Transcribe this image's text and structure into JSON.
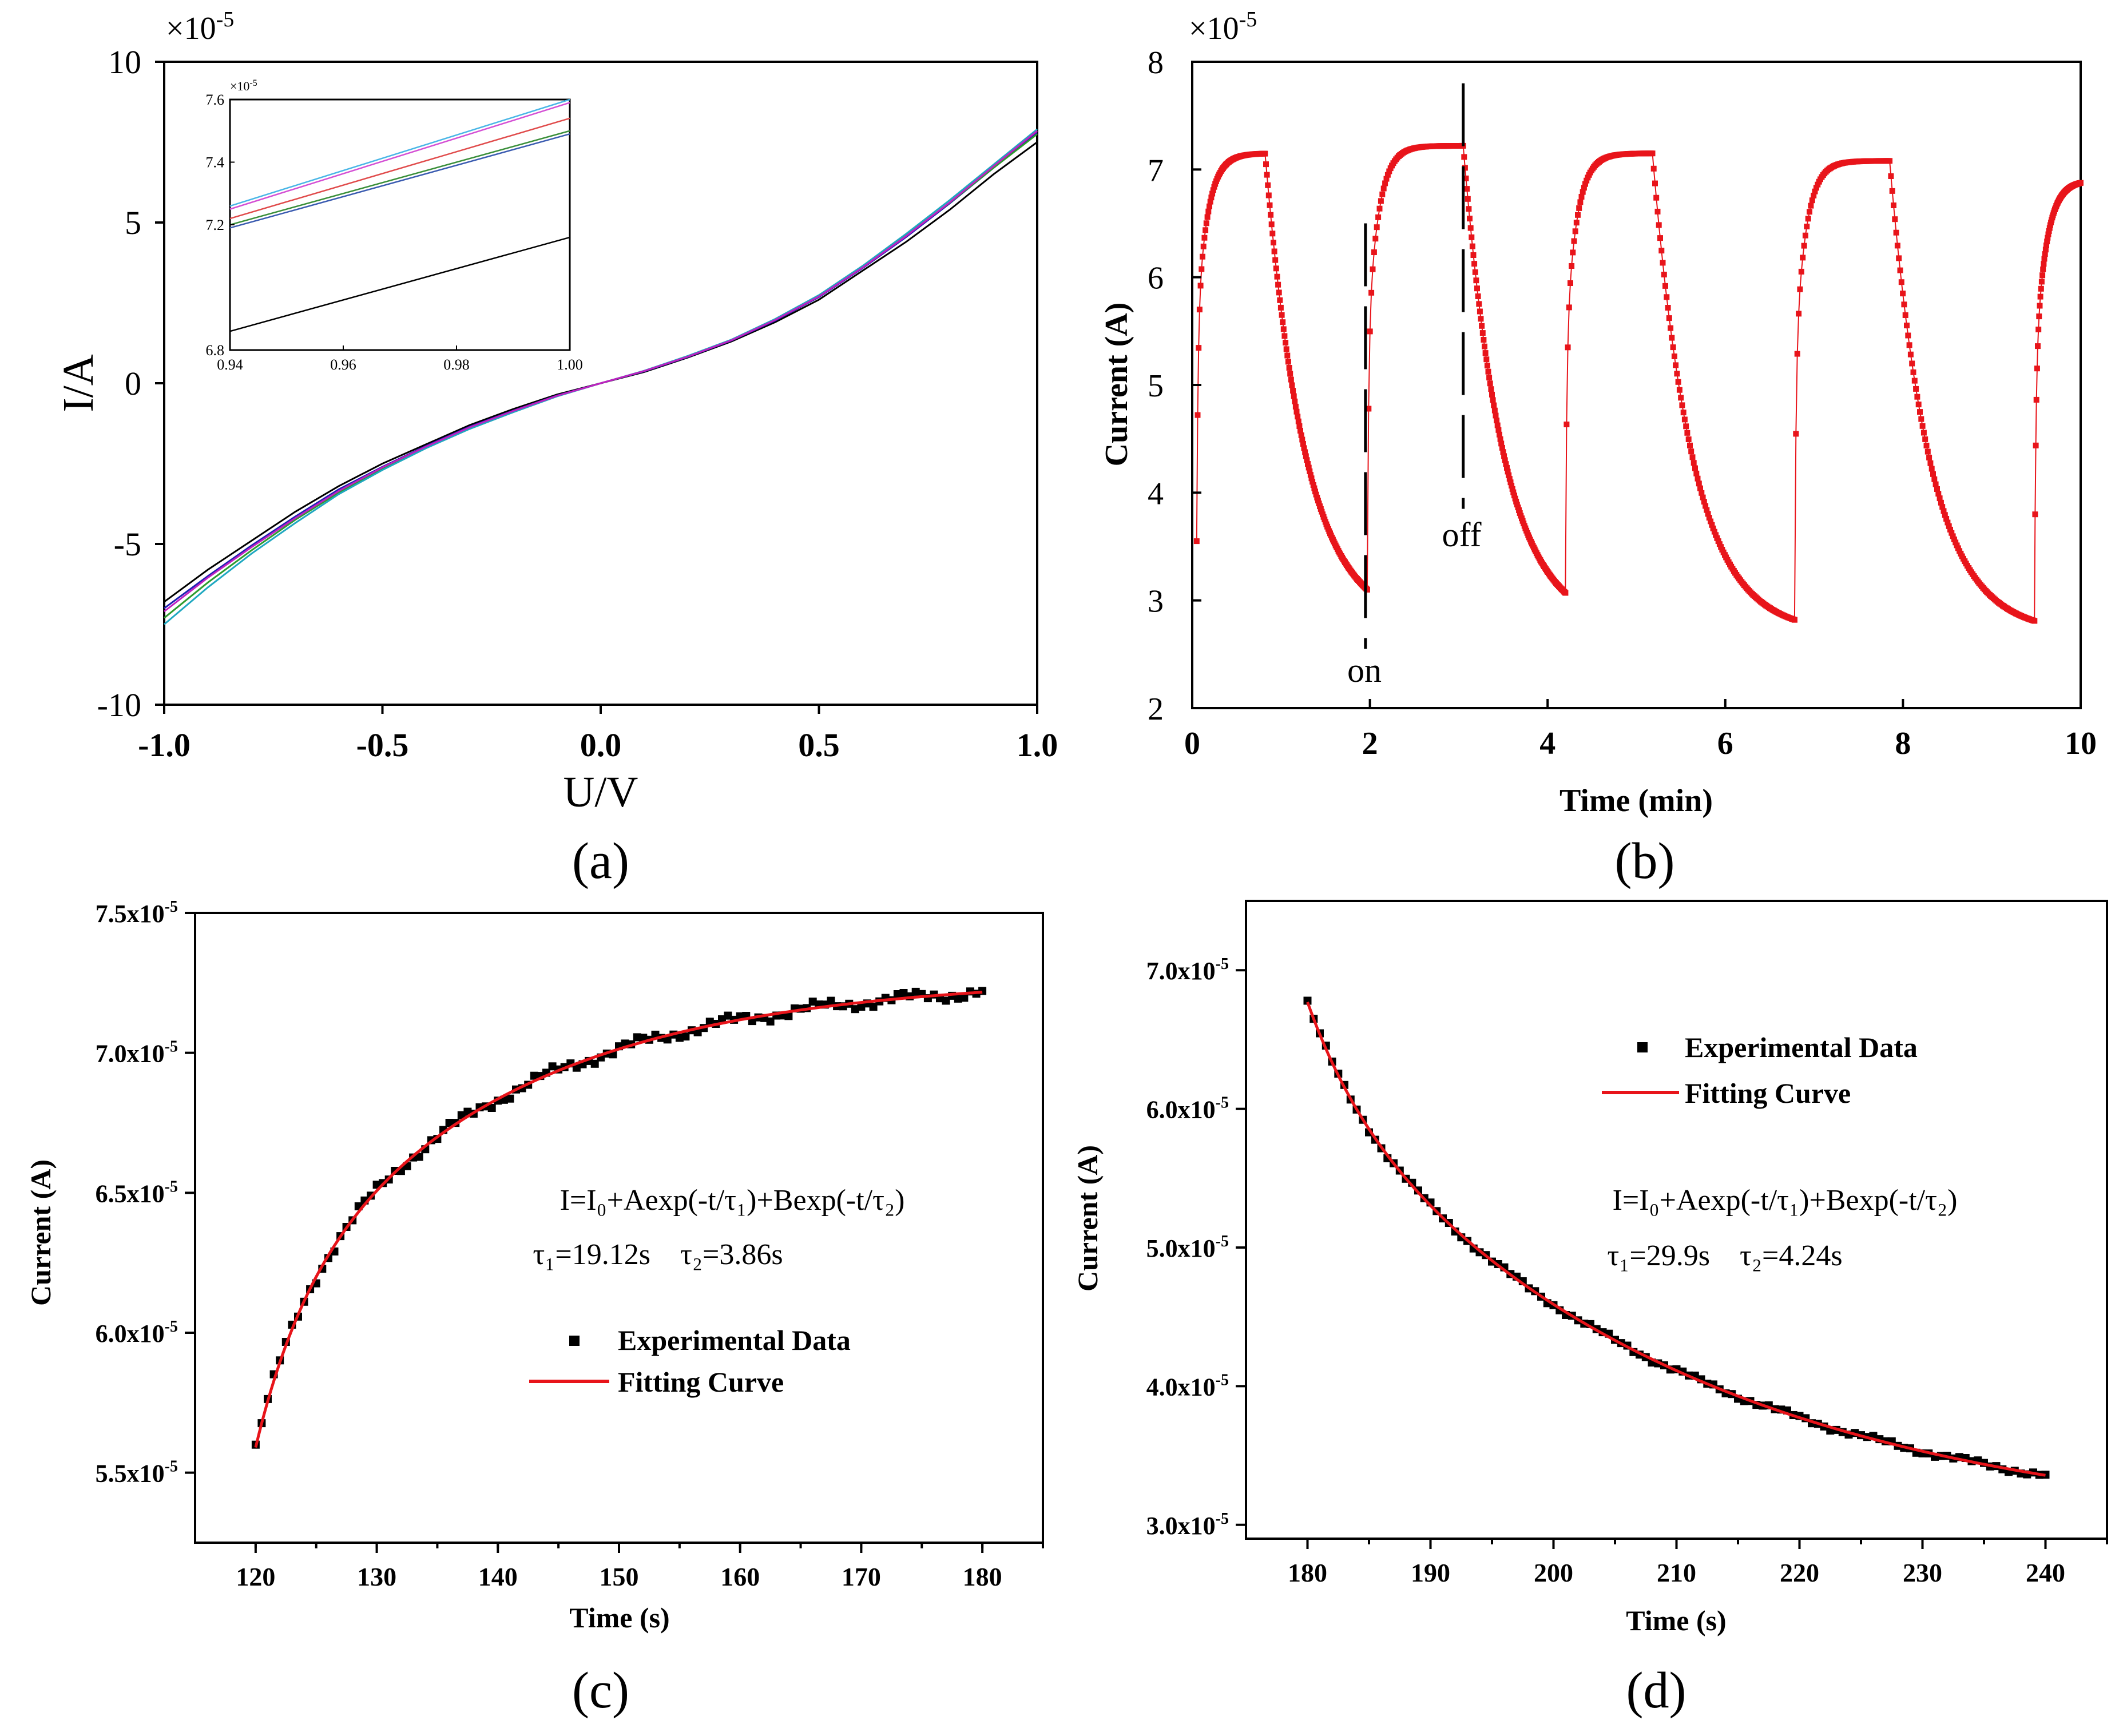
{
  "chart_data": [
    {
      "id": "a",
      "type": "line",
      "panel_label": "(a)",
      "xlabel": "U/V",
      "ylabel": "I/A",
      "y_multiplier": "×10",
      "y_multiplier_exp": "-5",
      "xlim": [
        -1.0,
        1.0
      ],
      "ylim": [
        -10,
        10
      ],
      "xticks": [
        -1.0,
        -0.5,
        0.0,
        0.5,
        1.0
      ],
      "xtick_labels": [
        "-1.0",
        "-0.5",
        "0.0",
        "0.5",
        "1.0"
      ],
      "yticks": [
        10,
        5,
        0,
        -5,
        -10
      ],
      "ytick_labels": [
        "10",
        "5",
        "0",
        "-5",
        "-10"
      ],
      "series": [
        {
          "name": "black",
          "color": "#000000",
          "x": [
            -1.0,
            -0.9,
            -0.8,
            -0.7,
            -0.6,
            -0.5,
            -0.4,
            -0.3,
            -0.2,
            -0.1,
            0.0,
            0.1,
            0.2,
            0.3,
            0.4,
            0.5,
            0.6,
            0.7,
            0.8,
            0.9,
            1.0
          ],
          "y": [
            -6.8,
            -5.8,
            -4.9,
            -4.0,
            -3.2,
            -2.5,
            -1.9,
            -1.3,
            -0.8,
            -0.35,
            0.0,
            0.35,
            0.8,
            1.3,
            1.9,
            2.6,
            3.5,
            4.4,
            5.4,
            6.5,
            7.5
          ]
        },
        {
          "name": "blue",
          "color": "#1f1fb4",
          "x": [
            -1.0,
            -0.9,
            -0.8,
            -0.7,
            -0.6,
            -0.5,
            -0.4,
            -0.3,
            -0.2,
            -0.1,
            0.0,
            0.1,
            0.2,
            0.3,
            0.4,
            0.5,
            0.6,
            0.7,
            0.8,
            0.9,
            1.0
          ],
          "y": [
            -7.0,
            -6.0,
            -5.05,
            -4.15,
            -3.3,
            -2.6,
            -1.95,
            -1.35,
            -0.85,
            -0.38,
            0.0,
            0.37,
            0.82,
            1.33,
            1.95,
            2.68,
            3.58,
            4.55,
            5.6,
            6.7,
            7.8
          ]
        },
        {
          "name": "green",
          "color": "#2e9b2e",
          "x": [
            -1.0,
            -0.9,
            -0.8,
            -0.7,
            -0.6,
            -0.5,
            -0.4,
            -0.3,
            -0.2,
            -0.1,
            0.0,
            0.1,
            0.2,
            0.3,
            0.4,
            0.5,
            0.6,
            0.7,
            0.8,
            0.9,
            1.0
          ],
          "y": [
            -7.3,
            -6.2,
            -5.2,
            -4.25,
            -3.4,
            -2.65,
            -2.0,
            -1.4,
            -0.88,
            -0.4,
            0.0,
            0.38,
            0.84,
            1.35,
            1.98,
            2.72,
            3.62,
            4.6,
            5.62,
            6.7,
            7.75
          ]
        },
        {
          "name": "cyan",
          "color": "#1fa8c0",
          "x": [
            -1.0,
            -0.9,
            -0.8,
            -0.7,
            -0.6,
            -0.5,
            -0.4,
            -0.3,
            -0.2,
            -0.1,
            0.0,
            0.1,
            0.2,
            0.3,
            0.4,
            0.5,
            0.6,
            0.7,
            0.8,
            0.9,
            1.0
          ],
          "y": [
            -7.5,
            -6.35,
            -5.3,
            -4.35,
            -3.45,
            -2.7,
            -2.02,
            -1.42,
            -0.9,
            -0.41,
            0.0,
            0.39,
            0.85,
            1.36,
            2.0,
            2.74,
            3.65,
            4.65,
            5.7,
            6.8,
            7.9
          ]
        },
        {
          "name": "magenta",
          "color": "#c020c0",
          "x": [
            -1.0,
            -0.9,
            -0.8,
            -0.7,
            -0.6,
            -0.5,
            -0.4,
            -0.3,
            -0.2,
            -0.1,
            0.0,
            0.1,
            0.2,
            0.3,
            0.4,
            0.5,
            0.6,
            0.7,
            0.8,
            0.9,
            1.0
          ],
          "y": [
            -7.1,
            -6.05,
            -5.1,
            -4.2,
            -3.35,
            -2.62,
            -1.97,
            -1.37,
            -0.86,
            -0.39,
            0.0,
            0.38,
            0.83,
            1.34,
            1.97,
            2.7,
            3.6,
            4.58,
            5.63,
            6.75,
            7.85
          ]
        }
      ],
      "inset": {
        "xlim": [
          0.94,
          1.0
        ],
        "ylim": [
          6.8,
          7.6
        ],
        "xticks": [
          0.94,
          0.96,
          0.98,
          1.0
        ],
        "xtick_labels": [
          "0.94",
          "0.96",
          "0.98",
          "1.00"
        ],
        "yticks": [
          7.6,
          7.4,
          7.2,
          6.8
        ],
        "ytick_labels": [
          "7.6",
          "7.4",
          "7.2",
          "6.8"
        ],
        "y_multiplier": "×10",
        "y_multiplier_exp": "-5",
        "lines": [
          {
            "color": "#49b6e6",
            "y0": 7.26,
            "y1": 7.6
          },
          {
            "color": "#d44fd4",
            "y0": 7.25,
            "y1": 7.59
          },
          {
            "color": "#e04b4b",
            "y0": 7.22,
            "y1": 7.54
          },
          {
            "color": "#3a8f3a",
            "y0": 7.2,
            "y1": 7.5
          },
          {
            "color": "#3a5bb0",
            "y0": 7.19,
            "y1": 7.49
          },
          {
            "color": "#000000",
            "y0": 6.86,
            "y1": 7.16
          }
        ]
      }
    },
    {
      "id": "b",
      "type": "scatter",
      "panel_label": "(b)",
      "xlabel": "Time (min)",
      "ylabel": "Current (A)",
      "y_multiplier": "×10",
      "y_multiplier_exp": "-5",
      "xlim": [
        0,
        10
      ],
      "ylim": [
        2,
        8
      ],
      "xticks": [
        0,
        2,
        4,
        6,
        8,
        10
      ],
      "xtick_labels": [
        "0",
        "2",
        "4",
        "6",
        "8",
        "10"
      ],
      "yticks": [
        8,
        7,
        6,
        5,
        4,
        3,
        2
      ],
      "ytick_labels": [
        "8",
        "7",
        "6",
        "5",
        "4",
        "3",
        "2"
      ],
      "color": "#e8141a",
      "annotations": {
        "on": "on",
        "off": "off"
      },
      "cycles": [
        {
          "t_on": 0.05,
          "t_off": 0.82,
          "t_end": 1.97,
          "low": 3.55,
          "high": 7.15,
          "floor": 3.1
        },
        {
          "t_on": 1.97,
          "t_off": 3.05,
          "t_end": 4.2,
          "low": 3.1,
          "high": 7.22,
          "floor": 3.07
        },
        {
          "t_on": 4.2,
          "t_off": 5.18,
          "t_end": 6.78,
          "low": 3.07,
          "high": 7.15,
          "floor": 2.82
        },
        {
          "t_on": 6.78,
          "t_off": 7.85,
          "t_end": 9.48,
          "low": 2.82,
          "high": 7.08,
          "floor": 2.81
        },
        {
          "t_on": 9.48,
          "t_off": 10.0,
          "t_end": 10.0,
          "low": 2.81,
          "high": 6.9,
          "floor": 6.9
        }
      ]
    },
    {
      "id": "c",
      "type": "scatter",
      "panel_label": "(c)",
      "xlabel": "Time (s)",
      "ylabel": "Current (A)",
      "xlim": [
        115,
        185
      ],
      "ylim": [
        5.25,
        7.5
      ],
      "xticks": [
        120,
        130,
        140,
        150,
        160,
        170,
        180
      ],
      "xtick_labels": [
        "120",
        "130",
        "140",
        "150",
        "160",
        "170",
        "180"
      ],
      "yticks": [
        7.5,
        7.0,
        6.5,
        6.0,
        5.5
      ],
      "ytick_labels": [
        "7.5x10",
        "7.0x10",
        "6.5x10",
        "6.0x10",
        "5.5x10"
      ],
      "ytick_exp": "-5",
      "equation": "I=I₀+Aexp(-t/τ₁)+Bexp(-t/τ₂)",
      "tau_text": "τ₁=19.12s    τ₂=3.86s",
      "legend": [
        "Experimental Data",
        "Fitting Curve"
      ],
      "fit": {
        "I0": 7.27,
        "A": 1.23,
        "tau1": 19.12,
        "B": 0.45,
        "tau2": 3.86,
        "t0": 120,
        "tmax": 180
      },
      "data_color": "#000000",
      "fit_color": "#e8141a"
    },
    {
      "id": "d",
      "type": "scatter",
      "panel_label": "(d)",
      "xlabel": "Time (s)",
      "ylabel": "Current (A)",
      "xlim": [
        175,
        245
      ],
      "ylim": [
        2.9,
        7.5
      ],
      "xticks": [
        180,
        190,
        200,
        210,
        220,
        230,
        240
      ],
      "xtick_labels": [
        "180",
        "190",
        "200",
        "210",
        "220",
        "230",
        "240"
      ],
      "yticks": [
        7.0,
        6.0,
        5.0,
        4.0,
        3.0
      ],
      "ytick_labels": [
        "7.0x10",
        "6.0x10",
        "5.0x10",
        "4.0x10",
        "3.0x10"
      ],
      "ytick_exp": "-5",
      "equation": "I=I₀+Aexp(-t/τ₁)+Bexp(-t/τ₂)",
      "tau_text": "τ₁=29.9s    τ₂=4.24s",
      "legend": [
        "Experimental Data",
        "Fitting Curve"
      ],
      "fit": {
        "I0": 2.92,
        "A": 3.25,
        "tau1": 29.9,
        "B": 0.6,
        "tau2": 4.24,
        "t0": 180,
        "tmax": 240
      },
      "data_color": "#000000",
      "fit_color": "#e8141a"
    }
  ]
}
